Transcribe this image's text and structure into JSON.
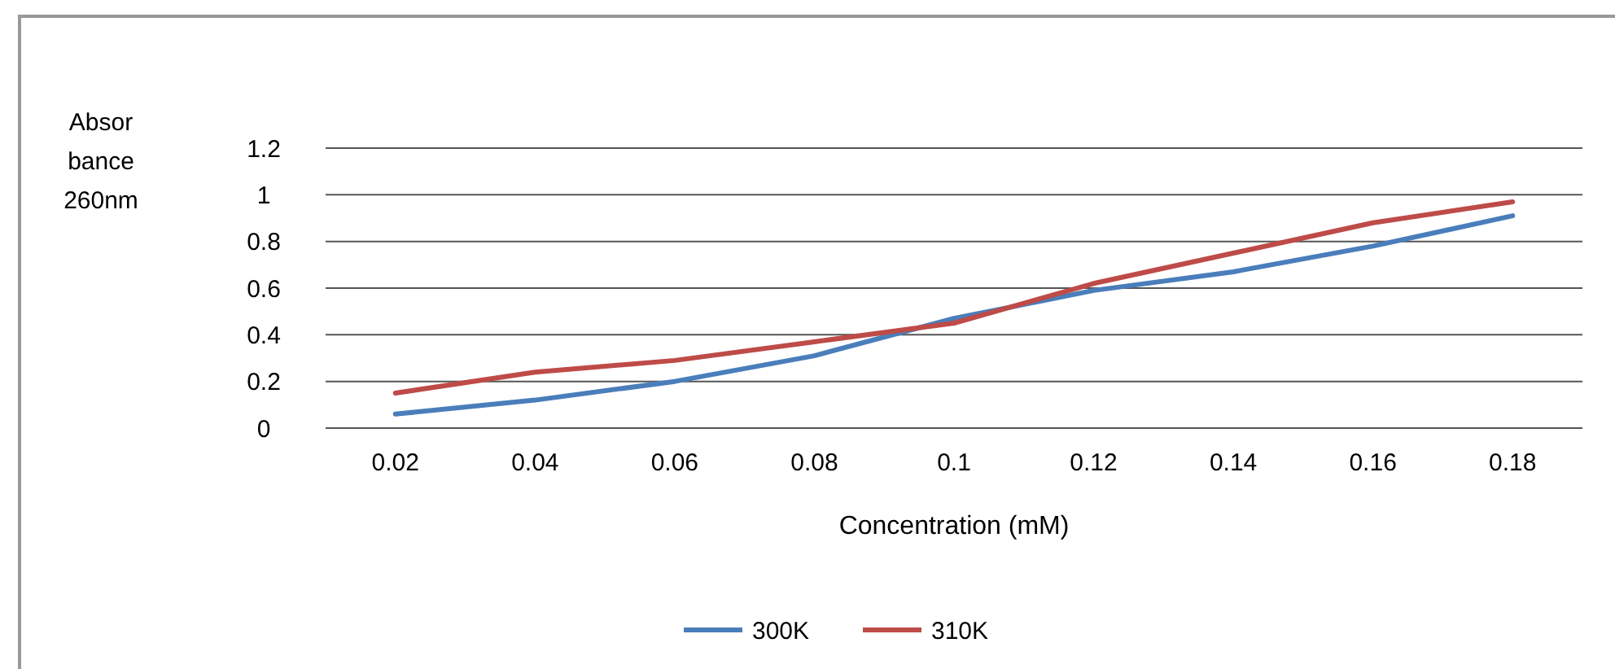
{
  "chart_data": {
    "type": "line",
    "xlabel": "Concentration (mM)",
    "ylabel": "Absorbance 260nm",
    "categories": [
      "0.02",
      "0.04",
      "0.06",
      "0.08",
      "0.1",
      "0.12",
      "0.14",
      "0.16",
      "0.18"
    ],
    "series": [
      {
        "name": "300K",
        "color": "#4a7ebb",
        "values": [
          0.06,
          0.12,
          0.2,
          0.31,
          0.47,
          0.59,
          0.67,
          0.78,
          0.91
        ]
      },
      {
        "name": "310K",
        "color": "#be4b48",
        "values": [
          0.15,
          0.24,
          0.29,
          0.37,
          0.45,
          0.62,
          0.75,
          0.88,
          0.97
        ]
      }
    ],
    "ylim": [
      0,
      1.2
    ],
    "yticks": [
      0,
      0.2,
      0.4,
      0.6,
      0.8,
      1,
      1.2
    ],
    "grid": "y",
    "legend": "bottom",
    "marker": "none",
    "line_style": "solid"
  }
}
